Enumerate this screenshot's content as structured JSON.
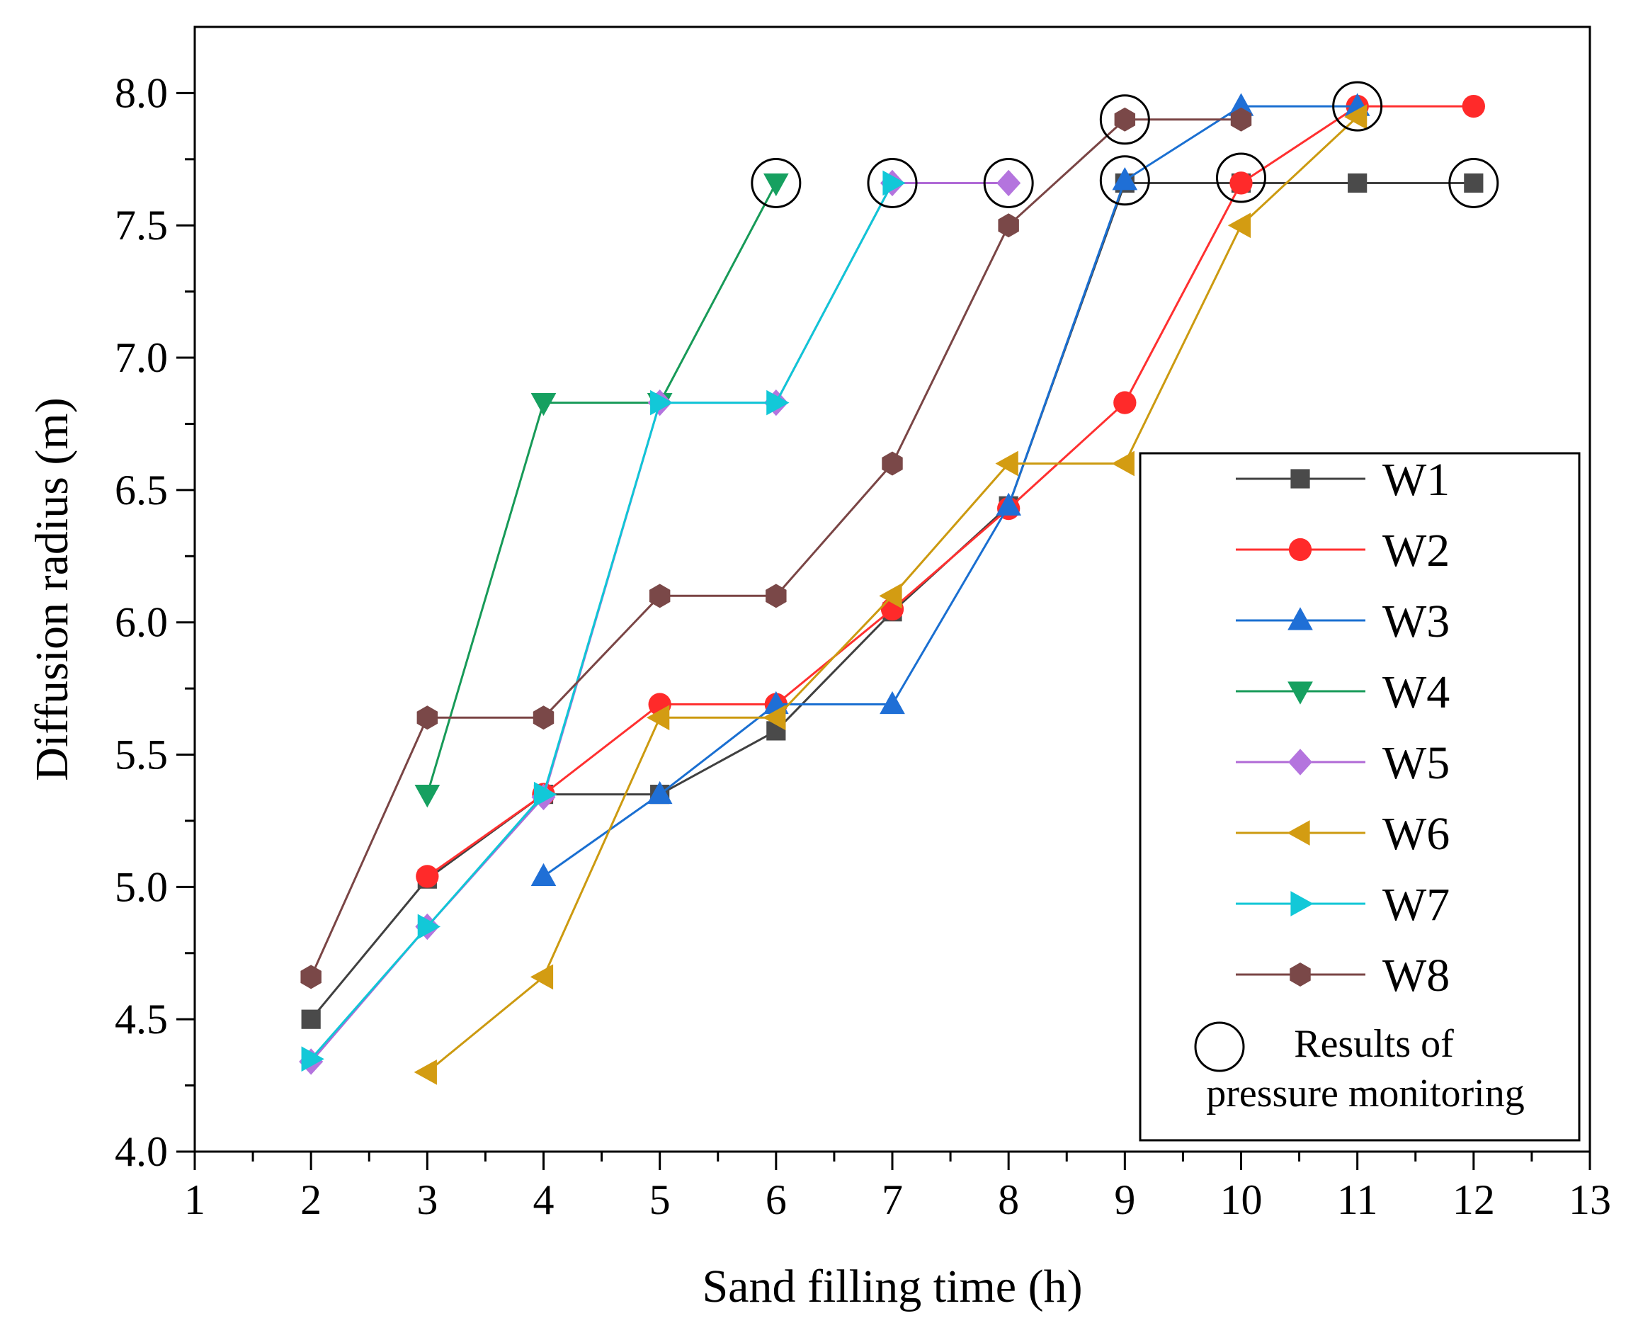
{
  "chart_data": {
    "type": "line",
    "xlabel": "Sand filling time (h)",
    "ylabel": "Diffusion radius (m)",
    "xlim": [
      1,
      13
    ],
    "ylim": [
      4.0,
      8.25
    ],
    "x_ticks": [
      "1",
      "2",
      "3",
      "4",
      "5",
      "6",
      "7",
      "8",
      "9",
      "10",
      "11",
      "12",
      "13"
    ],
    "y_ticks": [
      "4.0",
      "4.5",
      "5.0",
      "5.5",
      "6.0",
      "6.5",
      "7.0",
      "7.5",
      "8.0"
    ],
    "legend_position": "right",
    "series": [
      {
        "name": "W1",
        "marker": "square",
        "color": "#404040",
        "markerColor": "#4a4a4a",
        "points": [
          [
            2,
            4.5
          ],
          [
            3,
            5.03
          ],
          [
            4,
            5.35
          ],
          [
            5,
            5.35
          ],
          [
            6,
            5.59
          ],
          [
            7,
            6.04
          ],
          [
            8,
            6.44
          ],
          [
            9,
            7.66
          ],
          [
            10,
            7.66
          ],
          [
            11,
            7.66
          ],
          [
            12,
            7.66
          ]
        ]
      },
      {
        "name": "W2",
        "marker": "circle",
        "color": "#ff3030",
        "markerColor": "#ff2a2a",
        "points": [
          [
            3,
            5.04
          ],
          [
            4,
            5.35
          ],
          [
            5,
            5.69
          ],
          [
            6,
            5.69
          ],
          [
            7,
            6.05
          ],
          [
            8,
            6.43
          ],
          [
            9,
            6.83
          ],
          [
            10,
            7.66
          ],
          [
            11,
            7.95
          ],
          [
            12,
            7.95
          ]
        ]
      },
      {
        "name": "W3",
        "marker": "triangle-up",
        "color": "#1a6fd1",
        "markerColor": "#1f6fd6",
        "points": [
          [
            4,
            5.04
          ],
          [
            5,
            5.35
          ],
          [
            6,
            5.69
          ],
          [
            7,
            5.69
          ],
          [
            8,
            6.44
          ],
          [
            9,
            7.67
          ],
          [
            10,
            7.95
          ],
          [
            11,
            7.95
          ]
        ]
      },
      {
        "name": "W4",
        "marker": "triangle-down",
        "color": "#179a58",
        "markerColor": "#16a060",
        "points": [
          [
            3,
            5.35
          ],
          [
            4,
            6.83
          ],
          [
            5,
            6.83
          ],
          [
            6,
            7.66
          ]
        ]
      },
      {
        "name": "W5",
        "marker": "diamond",
        "color": "#b06ad6",
        "markerColor": "#b474de",
        "points": [
          [
            2,
            4.34
          ],
          [
            3,
            4.85
          ],
          [
            4,
            5.34
          ],
          [
            5,
            6.83
          ],
          [
            6,
            6.83
          ],
          [
            7,
            7.66
          ],
          [
            8,
            7.66
          ]
        ]
      },
      {
        "name": "W6",
        "marker": "triangle-left",
        "color": "#cc9a10",
        "markerColor": "#d39c12",
        "points": [
          [
            3,
            4.3
          ],
          [
            4,
            4.66
          ],
          [
            5,
            5.64
          ],
          [
            6,
            5.64
          ],
          [
            7,
            6.1
          ],
          [
            8,
            6.6
          ],
          [
            9,
            6.6
          ],
          [
            10,
            7.5
          ],
          [
            11,
            7.91
          ]
        ]
      },
      {
        "name": "W7",
        "marker": "triangle-right",
        "color": "#10c6d6",
        "markerColor": "#12c8d8",
        "points": [
          [
            2,
            4.35
          ],
          [
            3,
            4.85
          ],
          [
            4,
            5.35
          ],
          [
            5,
            6.83
          ],
          [
            6,
            6.83
          ],
          [
            7,
            7.66
          ]
        ]
      },
      {
        "name": "W8",
        "marker": "hexagon",
        "color": "#7a4545",
        "markerColor": "#7a4848",
        "points": [
          [
            2,
            4.66
          ],
          [
            3,
            5.64
          ],
          [
            4,
            5.64
          ],
          [
            5,
            6.1
          ],
          [
            6,
            6.1
          ],
          [
            7,
            6.6
          ],
          [
            8,
            7.5
          ],
          [
            9,
            7.9
          ],
          [
            10,
            7.9
          ]
        ]
      }
    ],
    "pressure_monitoring_points": [
      [
        6,
        7.66
      ],
      [
        7,
        7.66
      ],
      [
        8,
        7.66
      ],
      [
        9,
        7.9
      ],
      [
        9,
        7.67
      ],
      [
        10,
        7.68
      ],
      [
        11,
        7.95
      ],
      [
        12,
        7.66
      ]
    ],
    "legend_note_lines": [
      "Results of",
      "pressure monitoring"
    ]
  }
}
